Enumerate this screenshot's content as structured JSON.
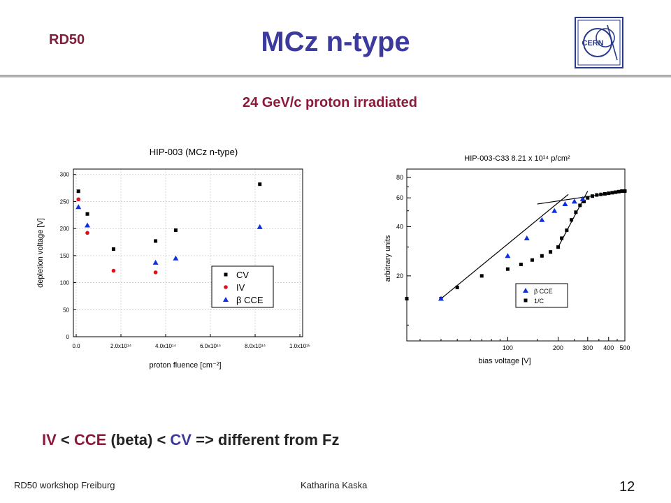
{
  "header": {
    "tag": "RD50",
    "title": "MCz n-type",
    "subtitle": "24 GeV/c proton irradiated",
    "logo_text": "CERN"
  },
  "conclusion": {
    "iv": "IV",
    "lt1": " < ",
    "cce": "CCE",
    "beta": " (beta) ",
    "lt2": "< ",
    "cv": "CV",
    "rest": " => different from Fz"
  },
  "footer": {
    "left": "RD50 workshop Freiburg",
    "center": "Katharina Kaska",
    "page": "12"
  },
  "colors": {
    "brand_red": "#8b1a3a",
    "brand_blue": "#3c3a9c",
    "cv": "#000000",
    "iv": "#e0101a",
    "cce": "#1030e0"
  },
  "chart_data": [
    {
      "type": "scatter",
      "title": "HIP-003 (MCz n-type)",
      "xlabel": "proton fluence [cm⁻²]",
      "ylabel": "depletion voltage [V]",
      "xlim": [
        0,
        1000000000000000.0
      ],
      "ylim": [
        0,
        310
      ],
      "xticks": [
        0,
        200000000000000.0,
        400000000000000.0,
        600000000000000.0,
        800000000000000.0,
        1000000000000000.0
      ],
      "xtick_labels": [
        "0.0",
        "2.0x10¹⁴",
        "4.0x10¹⁴",
        "6.0x10¹⁴",
        "8.0x10¹⁴",
        "1.0x10¹⁵"
      ],
      "yticks": [
        0,
        50,
        100,
        150,
        200,
        250,
        300
      ],
      "grid": true,
      "legend_position": "bottom-right",
      "series": [
        {
          "name": "CV",
          "marker": "square",
          "color": "#000000",
          "points": [
            [
              10000000000000.0,
              269
            ],
            [
              50000000000000.0,
              227
            ],
            [
              167000000000000.0,
              162
            ],
            [
              355000000000000.0,
              177
            ],
            [
              445000000000000.0,
              197
            ],
            [
              821000000000000.0,
              282
            ]
          ]
        },
        {
          "name": "IV",
          "marker": "circle",
          "color": "#e0101a",
          "points": [
            [
              10000000000000.0,
              254
            ],
            [
              50000000000000.0,
              192
            ],
            [
              167000000000000.0,
              122
            ],
            [
              355000000000000.0,
              119
            ]
          ]
        },
        {
          "name": "β CCE",
          "marker": "triangle",
          "color": "#1030e0",
          "points": [
            [
              10000000000000.0,
              240
            ],
            [
              50000000000000.0,
              206
            ],
            [
              355000000000000.0,
              137
            ],
            [
              445000000000000.0,
              145
            ],
            [
              821000000000000.0,
              203
            ]
          ]
        }
      ]
    },
    {
      "type": "scatter",
      "title": "HIP-003-C33 8.21 x 10¹⁴ p/cm²",
      "xlabel": "bias voltage [V]",
      "ylabel": "arbitrary units",
      "x_scale": "log",
      "y_scale": "log",
      "xlim": [
        25,
        500
      ],
      "ylim": [
        8,
        90
      ],
      "xticks": [
        100,
        200,
        300,
        400,
        500
      ],
      "yticks": [
        20,
        40,
        60,
        80
      ],
      "grid": false,
      "legend_position": "bottom-right",
      "series": [
        {
          "name": "β CCE",
          "marker": "triangle",
          "color": "#1030e0",
          "points": [
            [
              40,
              14.5
            ],
            [
              100,
              26.5
            ],
            [
              130,
              34
            ],
            [
              160,
              44
            ],
            [
              190,
              50
            ],
            [
              220,
              55
            ],
            [
              250,
              57
            ],
            [
              280,
              59
            ]
          ]
        },
        {
          "name": "1/C",
          "marker": "square",
          "color": "#000000",
          "points": [
            [
              25,
              14.5
            ],
            [
              40,
              14.5
            ],
            [
              50,
              17
            ],
            [
              70,
              20
            ],
            [
              100,
              22
            ],
            [
              120,
              23.5
            ],
            [
              140,
              25
            ],
            [
              160,
              26.5
            ],
            [
              180,
              28
            ],
            [
              200,
              30
            ],
            [
              210,
              34
            ],
            [
              225,
              38
            ],
            [
              240,
              44
            ],
            [
              255,
              49
            ],
            [
              270,
              54
            ],
            [
              285,
              57
            ],
            [
              300,
              60
            ],
            [
              320,
              61.5
            ],
            [
              340,
              62.5
            ],
            [
              360,
              63
            ],
            [
              380,
              63.5
            ],
            [
              400,
              64
            ],
            [
              420,
              64.5
            ],
            [
              440,
              65
            ],
            [
              460,
              65.5
            ],
            [
              480,
              66
            ],
            [
              500,
              66
            ]
          ]
        }
      ],
      "fit_lines": [
        {
          "points": [
            [
              40,
              14.5
            ],
            [
              230,
              63
            ]
          ]
        },
        {
          "points": [
            [
              150,
              55
            ],
            [
              500,
              66
            ]
          ]
        },
        {
          "points": [
            [
              200,
              30
            ],
            [
              300,
              66
            ]
          ]
        }
      ]
    }
  ]
}
